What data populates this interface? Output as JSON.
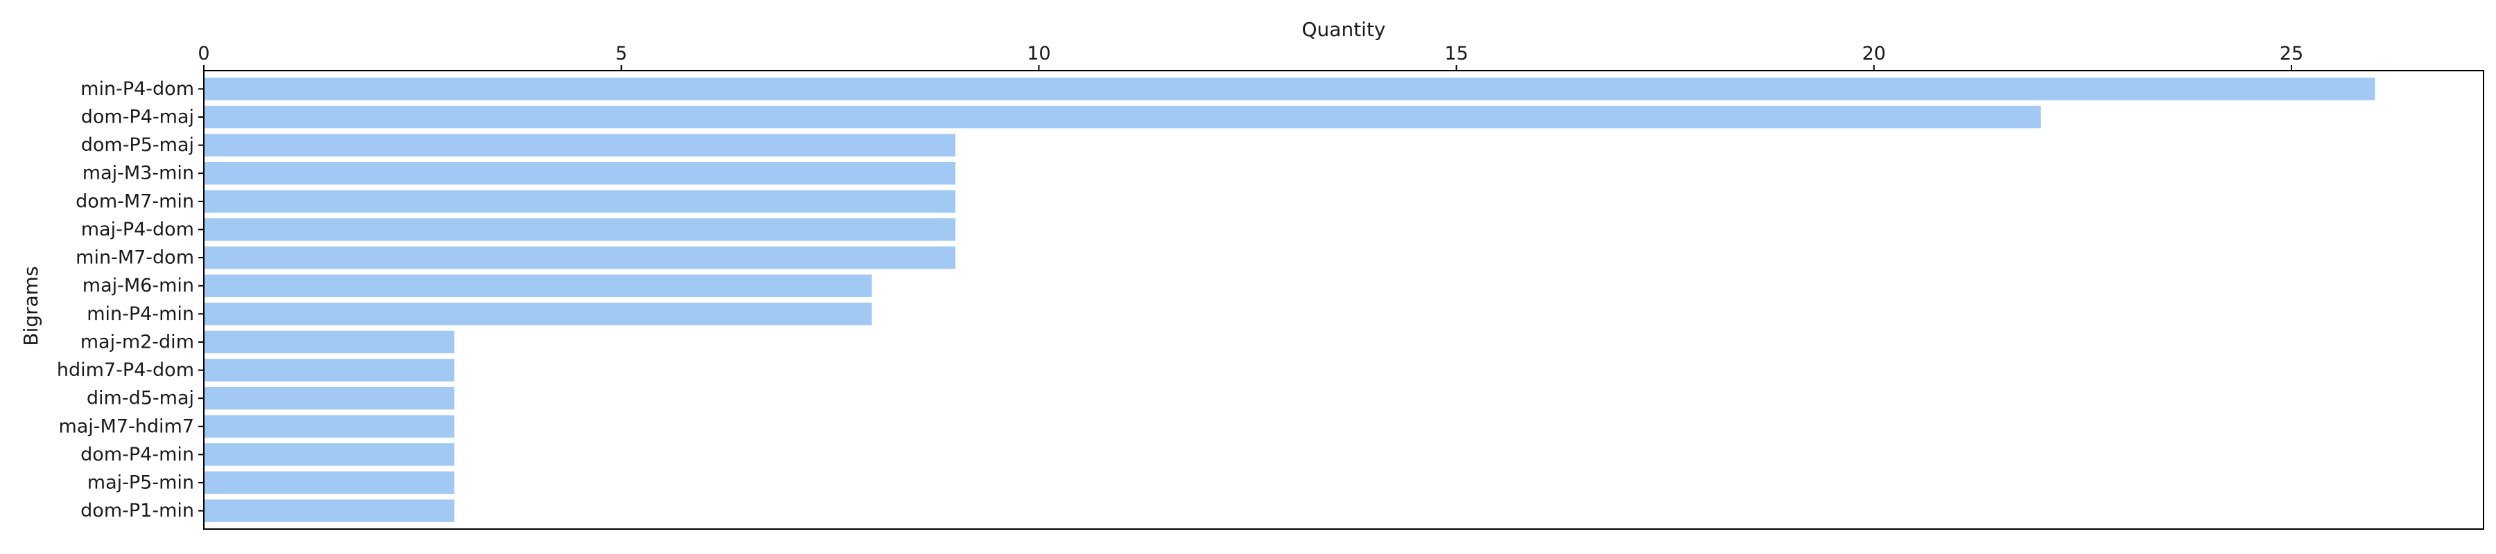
{
  "chart_data": {
    "type": "bar",
    "orientation": "horizontal",
    "title": "",
    "xlabel": "Quantity",
    "ylabel": "Bigrams",
    "x_axis_position": "top",
    "xlim": [
      0,
      27.3
    ],
    "xticks": [
      0,
      5,
      10,
      15,
      20,
      25
    ],
    "grid": false,
    "bar_color": "#a1c9f4",
    "categories": [
      "min-P4-dom",
      "dom-P4-maj",
      "dom-P5-maj",
      "maj-M3-min",
      "dom-M7-min",
      "maj-P4-dom",
      "min-M7-dom",
      "maj-M6-min",
      "min-P4-min",
      "maj-m2-dim",
      "hdim7-P4-dom",
      "dim-d5-maj",
      "maj-M7-hdim7",
      "dom-P4-min",
      "maj-P5-min",
      "dom-P1-min"
    ],
    "values": [
      26,
      22,
      9,
      9,
      9,
      9,
      9,
      8,
      8,
      3,
      3,
      3,
      3,
      3,
      3,
      3
    ]
  }
}
